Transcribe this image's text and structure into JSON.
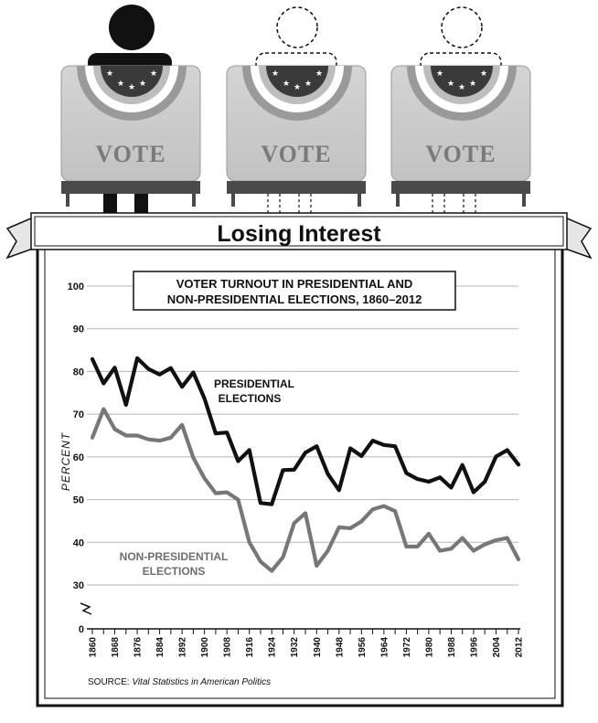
{
  "header": {
    "booth_text": "VOTE",
    "banner_title": "Losing Interest"
  },
  "chart_data": {
    "type": "line",
    "title_line1": "VOTER TURNOUT IN PRESIDENTIAL AND",
    "title_line2": "NON-PRESIDENTIAL ELECTIONS, 1860–2012",
    "ylabel": "PERCENT",
    "xlabel": "",
    "ylim": [
      0,
      100
    ],
    "yticks": [
      0,
      30,
      40,
      50,
      60,
      70,
      80,
      90,
      100
    ],
    "xlim": [
      1860,
      2012
    ],
    "xticks": [
      1860,
      1868,
      1876,
      1884,
      1892,
      1900,
      1908,
      1916,
      1924,
      1932,
      1940,
      1948,
      1956,
      1964,
      1972,
      1980,
      1988,
      1996,
      2004,
      2012
    ],
    "grid": true,
    "series": [
      {
        "name": "PRESIDENTIAL ELECTIONS",
        "label_line1": "PRESIDENTIAL",
        "label_line2": "ELECTIONS",
        "color": "#111111",
        "x": [
          1860,
          1864,
          1868,
          1872,
          1876,
          1880,
          1884,
          1888,
          1892,
          1896,
          1900,
          1904,
          1908,
          1912,
          1916,
          1920,
          1924,
          1928,
          1932,
          1936,
          1940,
          1944,
          1948,
          1952,
          1956,
          1960,
          1964,
          1968,
          1972,
          1976,
          1980,
          1984,
          1988,
          1992,
          1996,
          2000,
          2004,
          2008,
          2012
        ],
        "values": [
          82.9,
          77.2,
          80.9,
          72.2,
          83.1,
          80.6,
          79.3,
          80.8,
          76.4,
          79.8,
          73.7,
          65.5,
          65.7,
          59.0,
          61.6,
          49.2,
          48.9,
          56.9,
          57.0,
          61.0,
          62.5,
          56.0,
          52.2,
          62.0,
          60.2,
          63.8,
          62.8,
          62.5,
          56.2,
          54.8,
          54.2,
          55.2,
          52.8,
          58.1,
          51.7,
          54.2,
          60.1,
          61.6,
          58.2
        ]
      },
      {
        "name": "NON-PRESIDENTIAL ELECTIONS",
        "label_line1": "NON-PRESIDENTIAL",
        "label_line2": "ELECTIONS",
        "color": "#777777",
        "x": [
          1860,
          1864,
          1868,
          1872,
          1876,
          1880,
          1884,
          1888,
          1892,
          1896,
          1900,
          1904,
          1908,
          1912,
          1916,
          1920,
          1924,
          1928,
          1932,
          1936,
          1940,
          1944,
          1948,
          1952,
          1956,
          1960,
          1964,
          1968,
          1972,
          1976,
          1980,
          1984,
          1988,
          1992,
          1996,
          2000,
          2004,
          2008,
          2012
        ],
        "values": [
          64.5,
          71.2,
          66.5,
          65.0,
          65.0,
          64.1,
          63.8,
          64.5,
          67.5,
          59.8,
          55.0,
          51.5,
          51.7,
          50.0,
          40.0,
          35.5,
          33.3,
          36.5,
          44.5,
          46.8,
          34.5,
          38.0,
          43.5,
          43.3,
          44.9,
          47.7,
          48.5,
          47.3,
          39.0,
          39.0,
          42.0,
          38.0,
          38.5,
          41.0,
          38.0,
          39.5,
          40.5,
          41.0,
          36.0
        ]
      }
    ],
    "source_prefix": "SOURCE: ",
    "source_title": "Vital Statistics in American Politics"
  }
}
